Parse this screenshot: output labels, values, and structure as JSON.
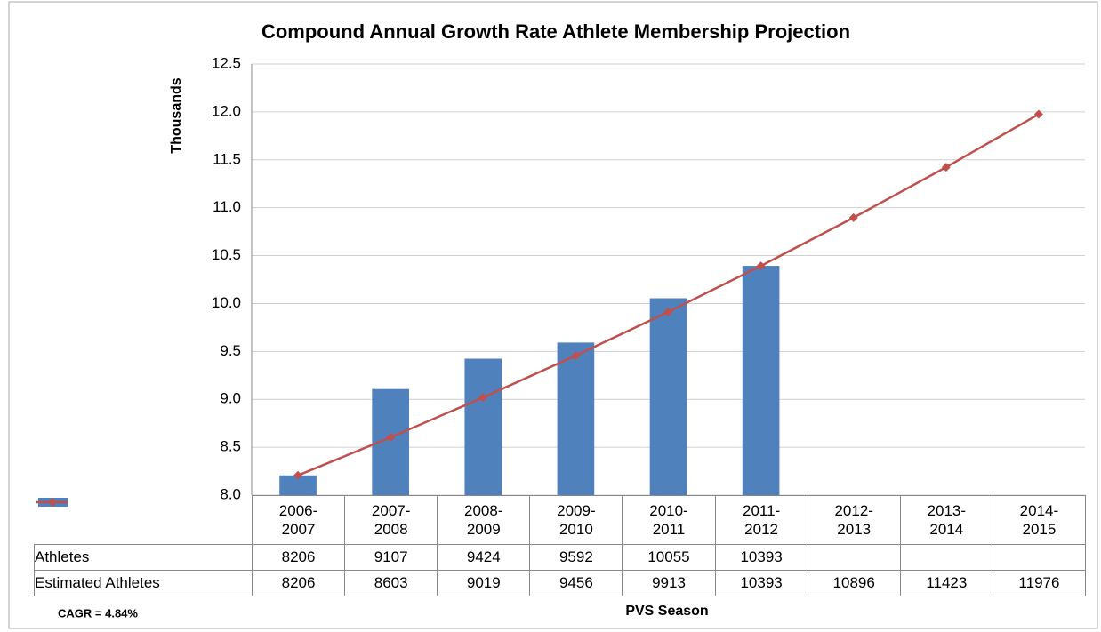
{
  "chart_data": {
    "type": "bar",
    "title": "Compound Annual Growth Rate Athlete Membership Projection",
    "y_label": "Thousands",
    "x_label": "PVS Season",
    "annotation": "CAGR = 4.84%",
    "categories": [
      "2006-2007",
      "2007-2008",
      "2008-2009",
      "2009-2010",
      "2010-2011",
      "2011-2012",
      "2012-2013",
      "2013-2014",
      "2014-2015"
    ],
    "series": [
      {
        "name": "Athletes",
        "type": "bar",
        "color": "#4f81bd",
        "values": [
          8.206,
          9.107,
          9.424,
          9.592,
          10.055,
          10.393,
          null,
          null,
          null
        ],
        "value_labels": [
          "8206",
          "9107",
          "9424",
          "9592",
          "10055",
          "10393",
          null,
          null,
          null
        ]
      },
      {
        "name": "Estimated Athletes",
        "type": "line",
        "color": "#c0504d",
        "values": [
          8.206,
          8.603,
          9.019,
          9.456,
          9.913,
          10.393,
          10.896,
          11.423,
          11.976
        ],
        "value_labels": [
          "8206",
          "8603",
          "9019",
          "9456",
          "9913",
          "10393",
          "10896",
          "11423",
          "11976"
        ]
      }
    ],
    "ylim": [
      8,
      12.5
    ],
    "yticks": [
      {
        "value": 8,
        "label": "8.0"
      },
      8.5,
      {
        "value": 9,
        "label": "9.0"
      },
      9.5,
      {
        "value": 10,
        "label": "10.0"
      },
      10.5,
      {
        "value": 11,
        "label": "11.0"
      },
      11.5,
      {
        "value": 12,
        "label": "12.0"
      },
      12.5
    ],
    "grid": true
  }
}
